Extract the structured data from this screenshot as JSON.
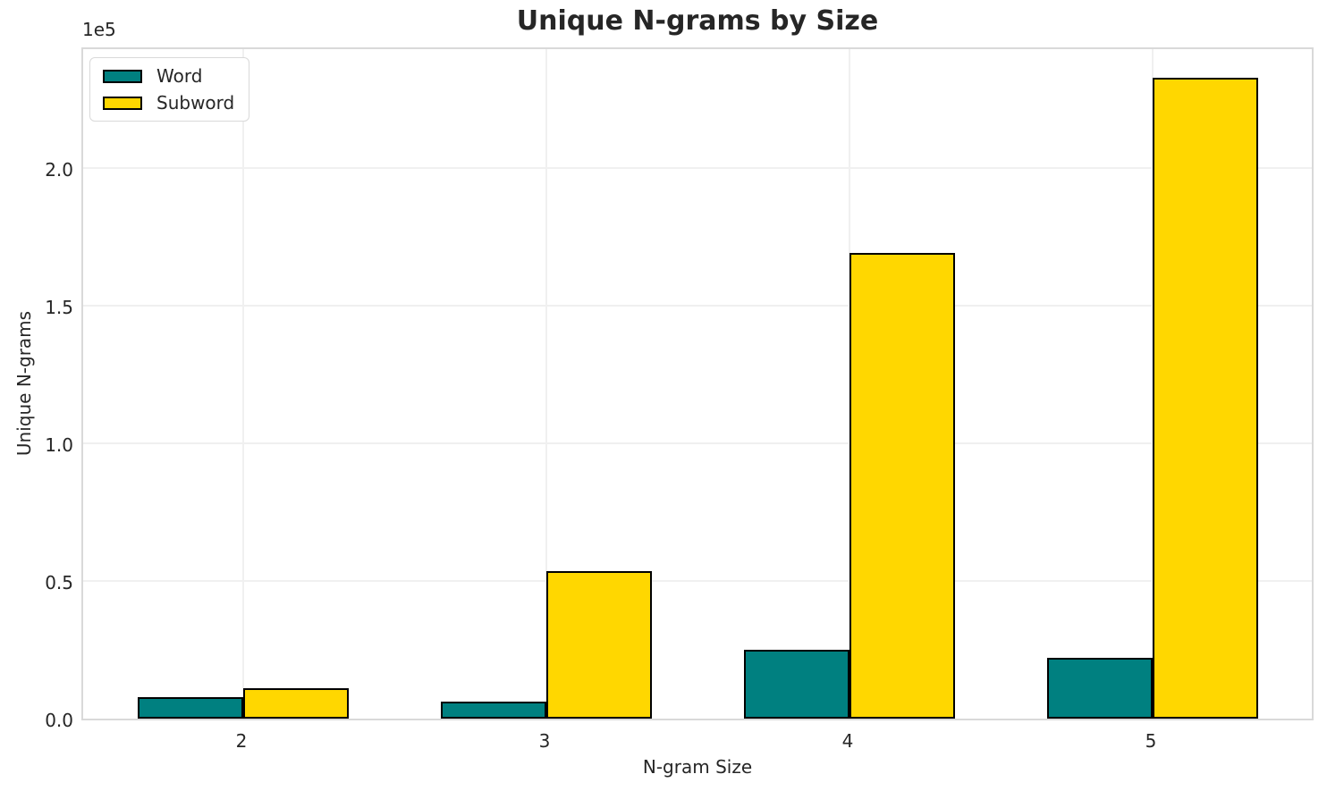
{
  "chart": {
    "title": "Unique N-grams by Size",
    "xlabel": "N-gram Size",
    "ylabel": "Unique N-grams",
    "y_offset_label": "1e5"
  },
  "colors": {
    "word": "#008080",
    "subword": "#ffd700",
    "bar_edge": "#000000",
    "gridline": "#f0f0f0",
    "spine": "#d9d9d9",
    "text": "#262626"
  },
  "chart_data": {
    "type": "bar",
    "title": "Unique N-grams by Size",
    "xlabel": "N-gram Size",
    "ylabel": "Unique N-grams",
    "scale_factor_label": "1e5",
    "categories": [
      "2",
      "3",
      "4",
      "5"
    ],
    "series": [
      {
        "name": "Word",
        "color": "#008080",
        "values": [
          7700,
          6200,
          24900,
          22100
        ]
      },
      {
        "name": "Subword",
        "color": "#ffd700",
        "values": [
          10900,
          53700,
          169300,
          232900
        ]
      }
    ],
    "ylim": [
      0,
      244500
    ],
    "yticks": [
      {
        "value": 0,
        "label": "0.0"
      },
      {
        "value": 50000,
        "label": "0.5"
      },
      {
        "value": 100000,
        "label": "1.0"
      },
      {
        "value": 150000,
        "label": "1.5"
      },
      {
        "value": 200000,
        "label": "2.0"
      }
    ],
    "grid": true,
    "legend_position": "upper left",
    "bar_edge_color": "#000000"
  }
}
